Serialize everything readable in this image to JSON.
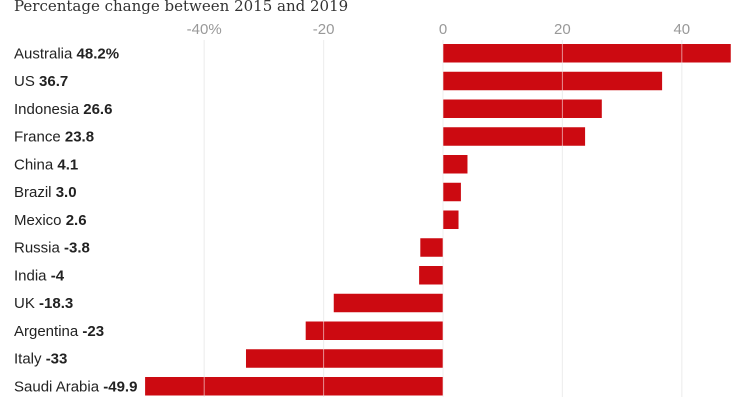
{
  "chart_data": {
    "type": "bar",
    "orientation": "horizontal",
    "subtitle": "Percentage change between 2015 and 2019",
    "categories": [
      "Australia",
      "US",
      "Indonesia",
      "France",
      "China",
      "Brazil",
      "Mexico",
      "Russia",
      "India",
      "UK",
      "Argentina",
      "Italy",
      "Saudi Arabia"
    ],
    "value_labels": [
      "48.2%",
      "36.7",
      "26.6",
      "23.8",
      "4.1",
      "3.0",
      "2.6",
      "-3.8",
      "-4",
      "-18.3",
      "-23",
      "-33",
      "-49.9"
    ],
    "values": [
      48.2,
      36.7,
      26.6,
      23.8,
      4.1,
      3.0,
      2.6,
      -3.8,
      -4,
      -18.3,
      -23,
      -33,
      -49.9
    ],
    "ticks": [
      -40,
      -20,
      0,
      20,
      40
    ],
    "tick_labels": [
      "-40%",
      "-20",
      "0",
      "20",
      "40"
    ],
    "xlim": [
      -50,
      50
    ],
    "grid": true,
    "bar_color": "#cc0a11",
    "grid_color": "#dcdcdc"
  }
}
